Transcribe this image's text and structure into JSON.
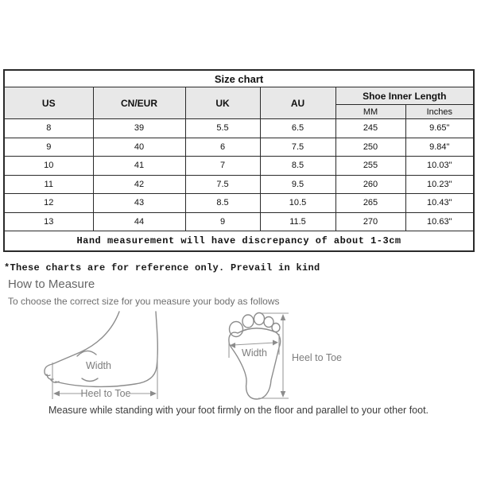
{
  "size_chart": {
    "title": "Size chart",
    "columns": [
      "US",
      "CN/EUR",
      "UK",
      "AU"
    ],
    "group_header": "Shoe Inner Length",
    "sub_columns": [
      "MM",
      "Inches"
    ],
    "rows": [
      [
        "8",
        "39",
        "5.5",
        "6.5",
        "245",
        "9.65\""
      ],
      [
        "9",
        "40",
        "6",
        "7.5",
        "250",
        "9.84\""
      ],
      [
        "10",
        "41",
        "7",
        "8.5",
        "255",
        "10.03\""
      ],
      [
        "11",
        "42",
        "7.5",
        "9.5",
        "260",
        "10.23\""
      ],
      [
        "12",
        "43",
        "8.5",
        "10.5",
        "265",
        "10.43\""
      ],
      [
        "13",
        "44",
        "9",
        "11.5",
        "270",
        "10.63\""
      ]
    ],
    "footnote": "Hand measurement will have discrepancy of about 1-3cm"
  },
  "reference_note": "*These charts are for reference only. Prevail in kind",
  "how_to_measure": {
    "heading": "How to Measure",
    "subtitle": "To choose the correct size for you measure your body as follows",
    "side_view": {
      "width_label": "Width",
      "length_label": "Heel to Toe"
    },
    "top_view": {
      "width_label": "Width",
      "length_label": "Heel to Toe"
    },
    "caption": "Measure while standing with your foot firmly on the floor and parallel to your other foot."
  },
  "colors": {
    "header_bg": "#e8e8e8",
    "table_border": "#2a2a2a",
    "diagram_line": "#8c8c8c",
    "muted_text": "#666666"
  }
}
